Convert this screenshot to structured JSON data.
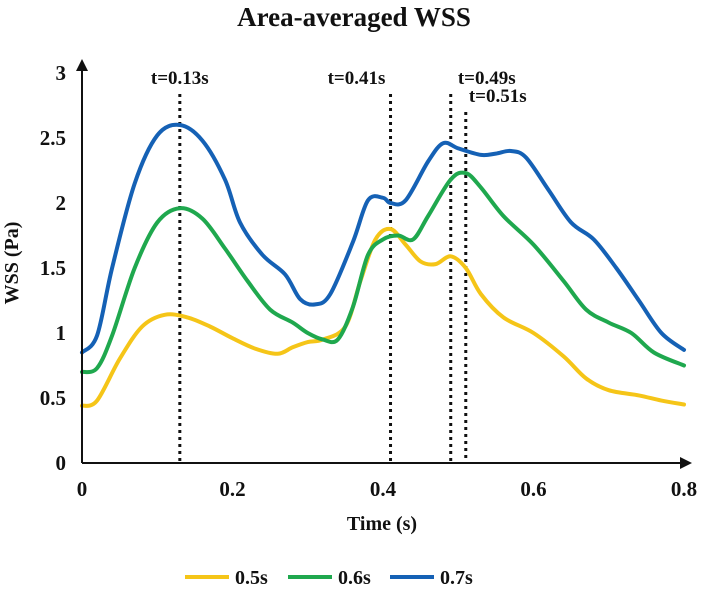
{
  "chart_data": {
    "type": "line",
    "title": "Area-averaged WSS",
    "xlabel": "Time (s)",
    "ylabel": "WSS (Pa)",
    "xlim": [
      0,
      0.8
    ],
    "ylim": [
      0,
      3
    ],
    "xticks": [
      "0",
      "0.2",
      "0.4",
      "0.6",
      "0.8"
    ],
    "yticks": [
      "0",
      "0.5",
      "1",
      "1.5",
      "2",
      "2.5",
      "3"
    ],
    "grid": false,
    "legend_position": "bottom",
    "annotations": [
      {
        "label": "t=0.13s",
        "x": 0.13
      },
      {
        "label": "t=0.41s",
        "x": 0.41
      },
      {
        "label": "t=0.49s",
        "x": 0.49
      },
      {
        "label": "t=0.51s",
        "x": 0.51
      }
    ],
    "series": [
      {
        "name": "0.5s",
        "color": "#f5c518",
        "points": [
          [
            0,
            0.44
          ],
          [
            0.02,
            0.48
          ],
          [
            0.05,
            0.8
          ],
          [
            0.08,
            1.05
          ],
          [
            0.11,
            1.14
          ],
          [
            0.14,
            1.12
          ],
          [
            0.17,
            1.05
          ],
          [
            0.2,
            0.96
          ],
          [
            0.23,
            0.88
          ],
          [
            0.26,
            0.84
          ],
          [
            0.28,
            0.89
          ],
          [
            0.3,
            0.93
          ],
          [
            0.32,
            0.95
          ],
          [
            0.35,
            1.05
          ],
          [
            0.37,
            1.4
          ],
          [
            0.39,
            1.72
          ],
          [
            0.41,
            1.8
          ],
          [
            0.43,
            1.68
          ],
          [
            0.45,
            1.55
          ],
          [
            0.47,
            1.53
          ],
          [
            0.49,
            1.59
          ],
          [
            0.51,
            1.5
          ],
          [
            0.53,
            1.3
          ],
          [
            0.56,
            1.12
          ],
          [
            0.6,
            1.0
          ],
          [
            0.64,
            0.82
          ],
          [
            0.67,
            0.65
          ],
          [
            0.7,
            0.56
          ],
          [
            0.74,
            0.52
          ],
          [
            0.77,
            0.48
          ],
          [
            0.8,
            0.45
          ]
        ]
      },
      {
        "name": "0.6s",
        "color": "#1fa84e",
        "points": [
          [
            0,
            0.7
          ],
          [
            0.02,
            0.73
          ],
          [
            0.04,
            0.98
          ],
          [
            0.07,
            1.5
          ],
          [
            0.1,
            1.85
          ],
          [
            0.13,
            1.96
          ],
          [
            0.16,
            1.88
          ],
          [
            0.19,
            1.65
          ],
          [
            0.22,
            1.4
          ],
          [
            0.25,
            1.18
          ],
          [
            0.28,
            1.08
          ],
          [
            0.3,
            1.0
          ],
          [
            0.32,
            0.95
          ],
          [
            0.34,
            0.95
          ],
          [
            0.36,
            1.2
          ],
          [
            0.38,
            1.6
          ],
          [
            0.4,
            1.72
          ],
          [
            0.42,
            1.75
          ],
          [
            0.44,
            1.72
          ],
          [
            0.46,
            1.9
          ],
          [
            0.49,
            2.18
          ],
          [
            0.51,
            2.23
          ],
          [
            0.53,
            2.12
          ],
          [
            0.56,
            1.9
          ],
          [
            0.6,
            1.68
          ],
          [
            0.64,
            1.4
          ],
          [
            0.67,
            1.18
          ],
          [
            0.7,
            1.08
          ],
          [
            0.73,
            1.0
          ],
          [
            0.76,
            0.85
          ],
          [
            0.8,
            0.75
          ]
        ]
      },
      {
        "name": "0.7s",
        "color": "#1561b5",
        "points": [
          [
            0,
            0.85
          ],
          [
            0.02,
            0.98
          ],
          [
            0.04,
            1.5
          ],
          [
            0.07,
            2.15
          ],
          [
            0.1,
            2.52
          ],
          [
            0.13,
            2.6
          ],
          [
            0.16,
            2.48
          ],
          [
            0.19,
            2.18
          ],
          [
            0.21,
            1.85
          ],
          [
            0.24,
            1.6
          ],
          [
            0.27,
            1.45
          ],
          [
            0.29,
            1.26
          ],
          [
            0.31,
            1.22
          ],
          [
            0.33,
            1.3
          ],
          [
            0.36,
            1.7
          ],
          [
            0.38,
            2.02
          ],
          [
            0.4,
            2.04
          ],
          [
            0.41,
            2.0
          ],
          [
            0.43,
            2.02
          ],
          [
            0.46,
            2.32
          ],
          [
            0.48,
            2.46
          ],
          [
            0.5,
            2.42
          ],
          [
            0.53,
            2.37
          ],
          [
            0.55,
            2.38
          ],
          [
            0.57,
            2.4
          ],
          [
            0.59,
            2.35
          ],
          [
            0.62,
            2.1
          ],
          [
            0.65,
            1.85
          ],
          [
            0.68,
            1.72
          ],
          [
            0.71,
            1.5
          ],
          [
            0.74,
            1.25
          ],
          [
            0.77,
            1.0
          ],
          [
            0.8,
            0.87
          ]
        ]
      }
    ]
  }
}
